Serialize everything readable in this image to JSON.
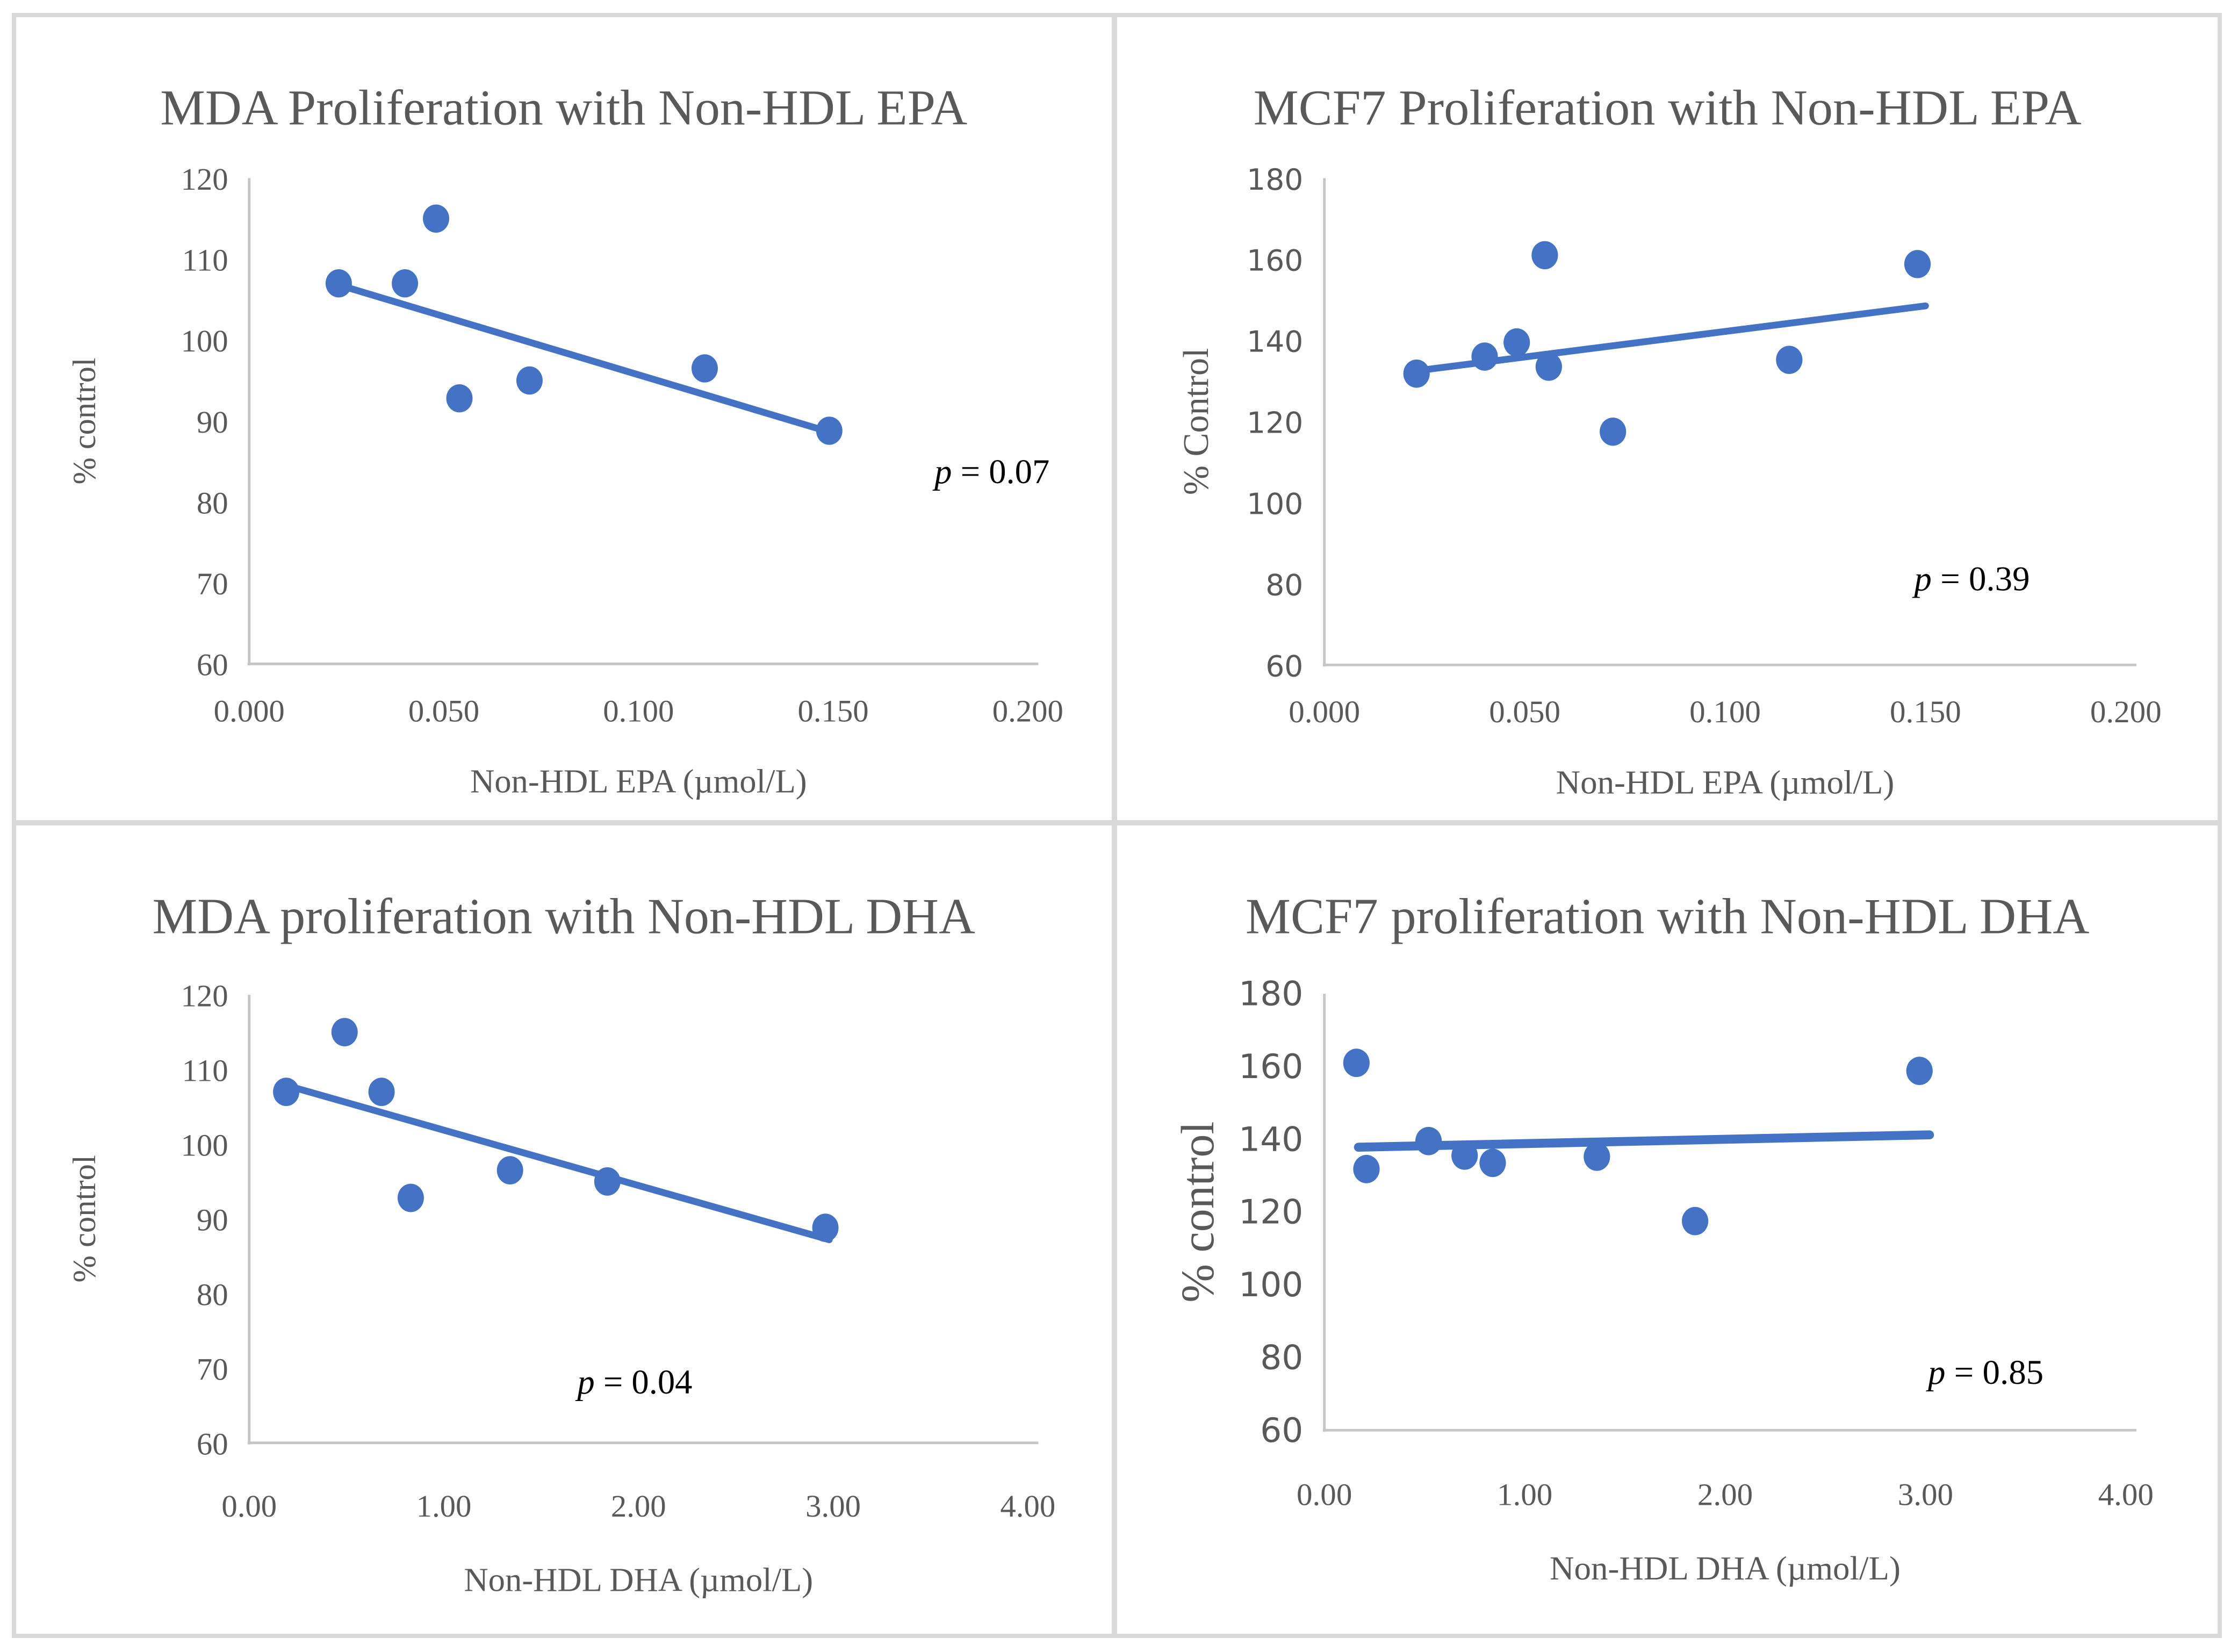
{
  "figure": {
    "background": "#ffffff",
    "border_color": "#D9D9D9",
    "accent_blue": "#4472C4",
    "text_gray": "#595959",
    "axis_line_gray": "#C6C6C6",
    "p_text_color": "#000000"
  },
  "chart_data": [
    {
      "type": "scatter",
      "title": "MDA Proliferation with Non-HDL EPA",
      "xlabel": "Non-HDL EPA (µmol/L)",
      "ylabel": "% control",
      "xlim": [
        0,
        0.2
      ],
      "ylim": [
        60,
        120
      ],
      "xtick_values": [
        0,
        0.05,
        0.1,
        0.15,
        0.2
      ],
      "xtick_labels": [
        "0.000",
        "0.050",
        "0.100",
        "0.150",
        "0.200"
      ],
      "ytick_values": [
        60,
        70,
        80,
        90,
        100,
        110,
        120
      ],
      "ytick_labels": [
        "60",
        "70",
        "80",
        "90",
        "100",
        "110",
        "120"
      ],
      "grid": false,
      "legend": null,
      "points": [
        [
          0.023,
          107
        ],
        [
          0.04,
          107
        ],
        [
          0.048,
          115
        ],
        [
          0.054,
          92.8
        ],
        [
          0.072,
          95
        ],
        [
          0.117,
          96.5
        ],
        [
          0.149,
          88.8
        ]
      ],
      "trend": [
        [
          0.023,
          106.8
        ],
        [
          0.15,
          88.5
        ]
      ],
      "p_label": "p = 0.07"
    },
    {
      "type": "scatter",
      "title": "MCF7 Proliferation with Non-HDL EPA",
      "xlabel": "Non-HDL EPA (µmol/L)",
      "ylabel": "% Control",
      "xlim": [
        0,
        0.2
      ],
      "ylim": [
        60,
        180
      ],
      "xtick_values": [
        0,
        0.05,
        0.1,
        0.15,
        0.2
      ],
      "xtick_labels": [
        "0.000",
        "0.050",
        "0.100",
        "0.150",
        "0.200"
      ],
      "ytick_values": [
        60,
        80,
        100,
        120,
        140,
        160,
        180
      ],
      "ytick_labels": [
        "60",
        "80",
        "100",
        "120",
        "140",
        "160",
        "180"
      ],
      "grid": false,
      "legend": null,
      "points": [
        [
          0.023,
          131.8
        ],
        [
          0.04,
          136
        ],
        [
          0.048,
          139.5
        ],
        [
          0.055,
          161
        ],
        [
          0.056,
          133.5
        ],
        [
          0.072,
          117.5
        ],
        [
          0.116,
          135.2
        ],
        [
          0.148,
          158.8
        ]
      ],
      "trend": [
        [
          0.023,
          132.5
        ],
        [
          0.15,
          148.5
        ]
      ],
      "p_label": "p = 0.39"
    },
    {
      "type": "scatter",
      "title": "MDA proliferation with Non-HDL DHA",
      "xlabel": "Non-HDL DHA (µmol/L)",
      "ylabel": "% control",
      "xlim": [
        0,
        4
      ],
      "ylim": [
        60,
        120
      ],
      "xtick_values": [
        0,
        1,
        2,
        3,
        4
      ],
      "xtick_labels": [
        "0.00",
        "1.00",
        "2.00",
        "3.00",
        "4.00"
      ],
      "ytick_values": [
        60,
        70,
        80,
        90,
        100,
        110,
        120
      ],
      "ytick_labels": [
        "60",
        "70",
        "80",
        "90",
        "100",
        "110",
        "120"
      ],
      "grid": false,
      "legend": null,
      "points": [
        [
          0.19,
          107
        ],
        [
          0.49,
          115
        ],
        [
          0.68,
          107
        ],
        [
          0.83,
          92.8
        ],
        [
          1.34,
          96.5
        ],
        [
          1.84,
          95
        ],
        [
          2.96,
          88.8
        ]
      ],
      "trend": [
        [
          0.2,
          107.8
        ],
        [
          2.98,
          87.2
        ]
      ],
      "p_label": "p = 0.04"
    },
    {
      "type": "scatter",
      "title": "MCF7 proliferation with Non-HDL DHA",
      "xlabel": "Non-HDL DHA (µmol/L)",
      "ylabel": "% control",
      "xlim": [
        0,
        4
      ],
      "ylim": [
        60,
        180
      ],
      "xtick_values": [
        0,
        1,
        2,
        3,
        4
      ],
      "xtick_labels": [
        "0.00",
        "1.00",
        "2.00",
        "3.00",
        "4.00"
      ],
      "ytick_values": [
        60,
        80,
        100,
        120,
        140,
        160,
        180
      ],
      "ytick_labels": [
        "60",
        "80",
        "100",
        "120",
        "140",
        "160",
        "180"
      ],
      "grid": false,
      "legend": null,
      "points": [
        [
          0.16,
          161
        ],
        [
          0.21,
          131.8
        ],
        [
          0.52,
          139.5
        ],
        [
          0.7,
          135.5
        ],
        [
          0.84,
          133.5
        ],
        [
          1.36,
          135.2
        ],
        [
          1.85,
          117.5
        ],
        [
          2.97,
          158.8
        ]
      ],
      "trend": [
        [
          0.17,
          137.8
        ],
        [
          3.02,
          141.2
        ]
      ],
      "p_label": "p = 0.85"
    }
  ]
}
